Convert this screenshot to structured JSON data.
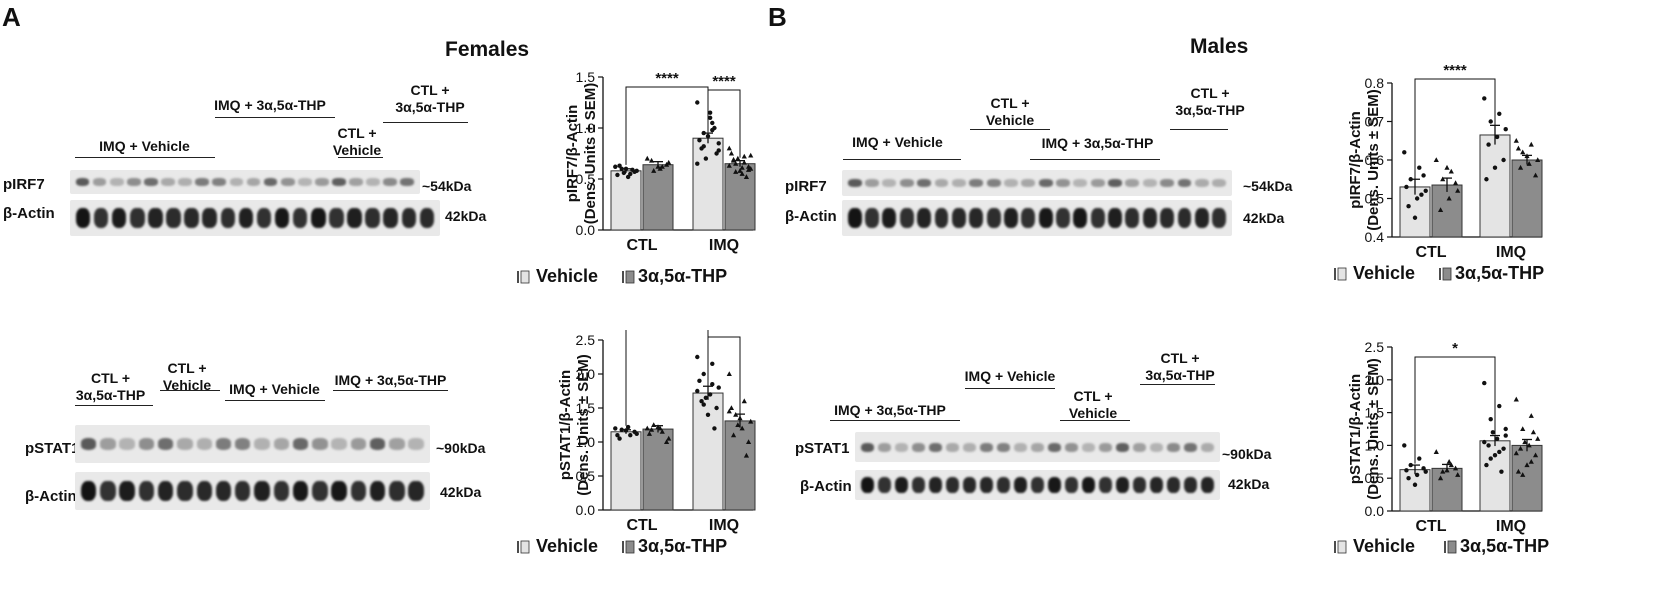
{
  "panels": [
    {
      "letter": "A",
      "sex": "Females",
      "blots": [
        {
          "groups": [
            "IMQ + Vehicle",
            "IMQ + 3α,5α-THP",
            "CTL +\nVehicle",
            "CTL +\n3α,5α-THP"
          ],
          "rows": [
            {
              "protein": "pIRF7",
              "mw": "~54kDa"
            },
            {
              "protein": "β-Actin",
              "mw": "42kDa"
            }
          ]
        },
        {
          "groups": [
            "CTL +\n3α,5α-THP",
            "CTL +\nVehicle",
            "IMQ + Vehicle",
            "IMQ + 3α,5α-THP"
          ],
          "rows": [
            {
              "protein": "pSTAT1",
              "mw": "~90kDa"
            },
            {
              "protein": "β-Actin",
              "mw": "42kDa"
            }
          ]
        }
      ]
    },
    {
      "letter": "B",
      "sex": "Males",
      "blots": [
        {
          "groups": [
            "IMQ + Vehicle",
            "CTL +\nVehicle",
            "IMQ + 3α,5α-THP",
            "CTL +\n3α,5α-THP"
          ],
          "rows": [
            {
              "protein": "pIRF7",
              "mw": "~54kDa"
            },
            {
              "protein": "β-Actin",
              "mw": "42kDa"
            }
          ]
        },
        {
          "groups": [
            "IMQ + 3α,5α-THP",
            "IMQ + Vehicle",
            "CTL +\nVehicle",
            "CTL +\n3α,5α-THP"
          ],
          "rows": [
            {
              "protein": "pSTAT1",
              "mw": "~90kDa"
            },
            {
              "protein": "β-Actin",
              "mw": "42kDa"
            }
          ]
        }
      ]
    }
  ],
  "colors": {
    "vehicle": "#e4e4e4",
    "thp": "#8c8c8c",
    "band": "#1a1a1a",
    "blot_bg": "#e9e9e9"
  },
  "chart_data": [
    {
      "type": "bar",
      "title": "",
      "panel": "A",
      "ylabel": "pIRF7/β-Actin\n(Dens. Units ± SEM)",
      "categories": [
        "CTL",
        "IMQ"
      ],
      "ylim": [
        0,
        1.5
      ],
      "yticks": [
        0,
        0.5,
        1.0,
        1.5
      ],
      "ytick_labels": [
        "0.0",
        "0.5",
        "1.0",
        "1.5"
      ],
      "series": [
        {
          "name": "Vehicle",
          "values": [
            0.58,
            0.9
          ],
          "sem": [
            0.02,
            0.05
          ]
        },
        {
          "name": "3α,5α-THP",
          "values": [
            0.64,
            0.65
          ],
          "sem": [
            0.03,
            0.03
          ]
        }
      ],
      "points": [
        [
          [
            0.62,
            0.55,
            0.6,
            0.58,
            0.52,
            0.63,
            0.57,
            0.6,
            0.54,
            0.59,
            0.56
          ],
          [
            0.7,
            0.62,
            0.58,
            0.66,
            0.6,
            0.68,
            0.64,
            0.62
          ]
        ],
        [
          [
            1.25,
            1.05,
            0.95,
            0.85,
            1.1,
            0.8,
            0.75,
            0.92,
            0.88,
            1.0,
            0.7,
            0.65,
            0.98,
            0.82,
            0.78,
            1.15
          ],
          [
            0.8,
            0.72,
            0.65,
            0.6,
            0.55,
            0.68,
            0.62,
            0.58,
            0.75,
            0.52,
            0.7,
            0.63,
            0.66,
            0.57,
            0.73,
            0.61,
            0.69,
            0.59
          ]
        ]
      ],
      "significance": [
        {
          "label": "****",
          "from": [
            0,
            0
          ],
          "to": [
            1,
            0
          ]
        },
        {
          "label": "****",
          "from": [
            1,
            0
          ],
          "to": [
            1,
            1
          ]
        }
      ],
      "legend": [
        "Vehicle",
        "3α,5α-THP"
      ]
    },
    {
      "type": "bar",
      "title": "",
      "panel": "A",
      "ylabel": "pSTAT1/β-Actin\n(Dens. Units ± SEM)",
      "categories": [
        "CTL",
        "IMQ"
      ],
      "ylim": [
        0,
        2.5
      ],
      "yticks": [
        0,
        0.5,
        1.0,
        1.5,
        2.0,
        2.5
      ],
      "ytick_labels": [
        "0.0",
        "0.5",
        "1.0",
        "1.5",
        "2.0",
        "2.5"
      ],
      "series": [
        {
          "name": "Vehicle",
          "values": [
            1.15,
            1.72
          ],
          "sem": [
            0.03,
            0.1
          ]
        },
        {
          "name": "3α,5α-THP",
          "values": [
            1.19,
            1.31
          ],
          "sem": [
            0.05,
            0.1
          ]
        }
      ],
      "points": [
        [
          [
            1.2,
            1.1,
            1.18,
            1.12,
            1.22,
            1.05,
            1.15,
            1.17,
            1.1
          ],
          [
            1.2,
            1.15,
            1.25,
            1.05,
            1.2,
            1.18,
            1.0,
            1.22,
            1.12
          ]
        ],
        [
          [
            2.25,
            2.15,
            2.0,
            1.8,
            1.7,
            1.6,
            1.5,
            1.4,
            1.9,
            1.2,
            1.65,
            1.75,
            1.85,
            1.55
          ],
          [
            2.0,
            1.6,
            1.4,
            1.3,
            1.2,
            1.1,
            1.0,
            1.35,
            1.5,
            0.8,
            1.25,
            1.45
          ]
        ]
      ],
      "significance": [
        {
          "label": "***",
          "from": [
            0,
            0
          ],
          "to": [
            1,
            0
          ]
        },
        {
          "label": "**",
          "from": [
            1,
            0
          ],
          "to": [
            1,
            1
          ]
        }
      ],
      "legend": [
        "Vehicle",
        "3α,5α-THP"
      ]
    },
    {
      "type": "bar",
      "title": "",
      "panel": "B",
      "ylabel": "pIRF7/β-Actin\n(Dens. Units ± SEM)",
      "categories": [
        "CTL",
        "IMQ"
      ],
      "ylim": [
        0.4,
        0.8
      ],
      "yticks": [
        0.4,
        0.5,
        0.6,
        0.7,
        0.8
      ],
      "ytick_labels": [
        "0.4",
        "0.5",
        "0.6",
        "0.7",
        "0.8"
      ],
      "series": [
        {
          "name": "Vehicle",
          "values": [
            0.53,
            0.665
          ],
          "sem": [
            0.02,
            0.025
          ]
        },
        {
          "name": "3α,5α-THP",
          "values": [
            0.535,
            0.6
          ],
          "sem": [
            0.018,
            0.012
          ]
        }
      ],
      "points": [
        [
          [
            0.62,
            0.58,
            0.55,
            0.52,
            0.5,
            0.48,
            0.56,
            0.45,
            0.53,
            0.51
          ],
          [
            0.6,
            0.57,
            0.55,
            0.52,
            0.5,
            0.47,
            0.54,
            0.58
          ]
        ],
        [
          [
            0.76,
            0.72,
            0.7,
            0.68,
            0.66,
            0.64,
            0.6,
            0.58,
            0.55
          ],
          [
            0.65,
            0.64,
            0.62,
            0.6,
            0.59,
            0.58,
            0.56,
            0.61,
            0.63
          ]
        ]
      ],
      "significance": [
        {
          "label": "****",
          "from": [
            0,
            0
          ],
          "to": [
            1,
            0
          ]
        }
      ],
      "legend": [
        "Vehicle",
        "3α,5α-THP"
      ]
    },
    {
      "type": "bar",
      "title": "",
      "panel": "B",
      "ylabel": "pSTAT1/β-Actin\n(Dens. Units ± SEM)",
      "categories": [
        "CTL",
        "IMQ"
      ],
      "ylim": [
        0,
        2.5
      ],
      "yticks": [
        0,
        0.5,
        1.0,
        1.5,
        2.0,
        2.5
      ],
      "ytick_labels": [
        "0.0",
        "0.5",
        "1.0",
        "1.5",
        "2.0",
        "2.5"
      ],
      "series": [
        {
          "name": "Vehicle",
          "values": [
            0.63,
            1.07
          ],
          "sem": [
            0.07,
            0.08
          ]
        },
        {
          "name": "3α,5α-THP",
          "values": [
            0.65,
            1.0
          ],
          "sem": [
            0.06,
            0.09
          ]
        }
      ],
      "points": [
        [
          [
            1.0,
            0.8,
            0.7,
            0.6,
            0.55,
            0.5,
            0.65,
            0.4,
            0.62
          ],
          [
            0.9,
            0.7,
            0.6,
            0.55,
            0.75,
            0.5,
            0.65,
            0.62
          ]
        ],
        [
          [
            1.95,
            1.6,
            1.4,
            1.25,
            1.1,
            1.0,
            0.95,
            0.85,
            0.7,
            0.6,
            1.2,
            1.05,
            0.9,
            0.8,
            1.15
          ],
          [
            1.7,
            1.45,
            1.25,
            1.1,
            1.0,
            0.95,
            0.85,
            0.7,
            0.6,
            1.2,
            1.05,
            0.88,
            0.75,
            0.55
          ]
        ]
      ],
      "significance": [
        {
          "label": "*",
          "from": [
            0,
            0
          ],
          "to": [
            1,
            0
          ]
        }
      ],
      "legend": [
        "Vehicle",
        "3α,5α-THP"
      ]
    }
  ]
}
